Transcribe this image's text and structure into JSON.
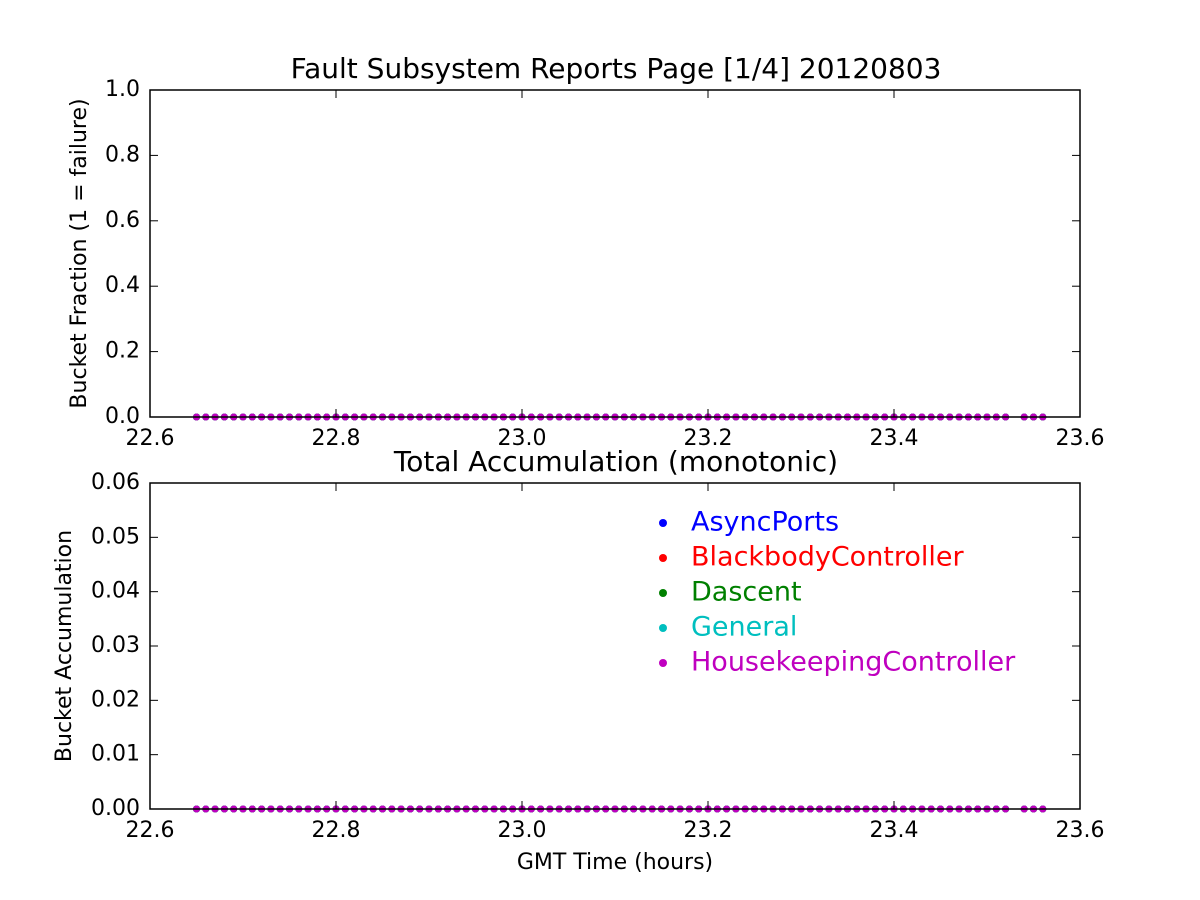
{
  "chart_data": [
    {
      "type": "scatter",
      "title": "Fault Subsystem Reports Page [1/4] 20120803",
      "y_label": "Bucket Fraction (1 = failure)",
      "x": [
        22.65,
        22.66,
        22.67,
        22.68,
        22.69,
        22.7,
        22.71,
        22.72,
        22.73,
        22.74,
        22.75,
        22.76,
        22.77,
        22.78,
        22.79,
        22.8,
        22.81,
        22.82,
        22.83,
        22.84,
        22.85,
        22.86,
        22.87,
        22.88,
        22.89,
        22.9,
        22.91,
        22.92,
        22.93,
        22.94,
        22.95,
        22.96,
        22.97,
        22.98,
        22.99,
        23.0,
        23.01,
        23.02,
        23.03,
        23.04,
        23.05,
        23.06,
        23.07,
        23.08,
        23.09,
        23.1,
        23.11,
        23.12,
        23.13,
        23.14,
        23.15,
        23.16,
        23.17,
        23.18,
        23.19,
        23.2,
        23.21,
        23.22,
        23.23,
        23.24,
        23.25,
        23.26,
        23.27,
        23.28,
        23.29,
        23.3,
        23.31,
        23.32,
        23.33,
        23.34,
        23.35,
        23.36,
        23.37,
        23.38,
        23.39,
        23.4,
        23.41,
        23.42,
        23.43,
        23.44,
        23.45,
        23.46,
        23.47,
        23.48,
        23.49,
        23.5,
        23.51,
        23.52,
        23.54,
        23.55,
        23.56
      ],
      "series": [
        {
          "color": "#0000ff",
          "values": [
            0,
            0,
            0,
            0,
            0,
            0,
            0,
            0,
            0,
            0,
            0,
            0,
            0,
            0,
            0,
            0,
            0,
            0,
            0,
            0,
            0,
            0,
            0,
            0,
            0,
            0,
            0,
            0,
            0,
            0,
            0,
            0,
            0,
            0,
            0,
            0,
            0,
            0,
            0,
            0,
            0,
            0,
            0,
            0,
            0,
            0,
            0,
            0,
            0,
            0,
            0,
            0,
            0,
            0,
            0,
            0,
            0,
            0,
            0,
            0,
            0,
            0,
            0,
            0,
            0,
            0,
            0,
            0,
            0,
            0,
            0,
            0,
            0,
            0,
            0,
            0,
            0,
            0,
            0,
            0,
            0,
            0,
            0,
            0,
            0,
            0,
            0,
            0,
            0,
            0,
            0
          ]
        },
        {
          "color": "#ff0000",
          "values": [
            0,
            0,
            0,
            0,
            0,
            0,
            0,
            0,
            0,
            0,
            0,
            0,
            0,
            0,
            0,
            0,
            0,
            0,
            0,
            0,
            0,
            0,
            0,
            0,
            0,
            0,
            0,
            0,
            0,
            0,
            0,
            0,
            0,
            0,
            0,
            0,
            0,
            0,
            0,
            0,
            0,
            0,
            0,
            0,
            0,
            0,
            0,
            0,
            0,
            0,
            0,
            0,
            0,
            0,
            0,
            0,
            0,
            0,
            0,
            0,
            0,
            0,
            0,
            0,
            0,
            0,
            0,
            0,
            0,
            0,
            0,
            0,
            0,
            0,
            0,
            0,
            0,
            0,
            0,
            0,
            0,
            0,
            0,
            0,
            0,
            0,
            0,
            0,
            0,
            0,
            0
          ]
        },
        {
          "color": "#008000",
          "values": [
            0,
            0,
            0,
            0,
            0,
            0,
            0,
            0,
            0,
            0,
            0,
            0,
            0,
            0,
            0,
            0,
            0,
            0,
            0,
            0,
            0,
            0,
            0,
            0,
            0,
            0,
            0,
            0,
            0,
            0,
            0,
            0,
            0,
            0,
            0,
            0,
            0,
            0,
            0,
            0,
            0,
            0,
            0,
            0,
            0,
            0,
            0,
            0,
            0,
            0,
            0,
            0,
            0,
            0,
            0,
            0,
            0,
            0,
            0,
            0,
            0,
            0,
            0,
            0,
            0,
            0,
            0,
            0,
            0,
            0,
            0,
            0,
            0,
            0,
            0,
            0,
            0,
            0,
            0,
            0,
            0,
            0,
            0,
            0,
            0,
            0,
            0,
            0,
            0,
            0,
            0
          ]
        },
        {
          "color": "#00bfbf",
          "values": [
            0,
            0,
            0,
            0,
            0,
            0,
            0,
            0,
            0,
            0,
            0,
            0,
            0,
            0,
            0,
            0,
            0,
            0,
            0,
            0,
            0,
            0,
            0,
            0,
            0,
            0,
            0,
            0,
            0,
            0,
            0,
            0,
            0,
            0,
            0,
            0,
            0,
            0,
            0,
            0,
            0,
            0,
            0,
            0,
            0,
            0,
            0,
            0,
            0,
            0,
            0,
            0,
            0,
            0,
            0,
            0,
            0,
            0,
            0,
            0,
            0,
            0,
            0,
            0,
            0,
            0,
            0,
            0,
            0,
            0,
            0,
            0,
            0,
            0,
            0,
            0,
            0,
            0,
            0,
            0,
            0,
            0,
            0,
            0,
            0,
            0,
            0,
            0,
            0,
            0,
            0
          ]
        },
        {
          "color": "#bf00bf",
          "values": [
            0,
            0,
            0,
            0,
            0,
            0,
            0,
            0,
            0,
            0,
            0,
            0,
            0,
            0,
            0,
            0,
            0,
            0,
            0,
            0,
            0,
            0,
            0,
            0,
            0,
            0,
            0,
            0,
            0,
            0,
            0,
            0,
            0,
            0,
            0,
            0,
            0,
            0,
            0,
            0,
            0,
            0,
            0,
            0,
            0,
            0,
            0,
            0,
            0,
            0,
            0,
            0,
            0,
            0,
            0,
            0,
            0,
            0,
            0,
            0,
            0,
            0,
            0,
            0,
            0,
            0,
            0,
            0,
            0,
            0,
            0,
            0,
            0,
            0,
            0,
            0,
            0,
            0,
            0,
            0,
            0,
            0,
            0,
            0,
            0,
            0,
            0,
            0,
            0,
            0,
            0
          ]
        }
      ],
      "xlim": [
        22.6,
        23.6
      ],
      "xticks": [
        22.6,
        22.8,
        {
          "value": 23,
          "label": "23.0"
        },
        23.2,
        23.4,
        23.6
      ],
      "ylim": [
        0,
        1
      ],
      "yticks": [
        {
          "value": 0,
          "label": "0.0"
        },
        0.2,
        0.4,
        0.6,
        0.8,
        {
          "value": 1,
          "label": "1.0"
        }
      ]
    },
    {
      "type": "scatter",
      "title": "Total Accumulation (monotonic)",
      "y_label": "Bucket Accumulation",
      "x_label": "GMT Time (hours)",
      "x": [
        22.65,
        22.66,
        22.67,
        22.68,
        22.69,
        22.7,
        22.71,
        22.72,
        22.73,
        22.74,
        22.75,
        22.76,
        22.77,
        22.78,
        22.79,
        22.8,
        22.81,
        22.82,
        22.83,
        22.84,
        22.85,
        22.86,
        22.87,
        22.88,
        22.89,
        22.9,
        22.91,
        22.92,
        22.93,
        22.94,
        22.95,
        22.96,
        22.97,
        22.98,
        22.99,
        23.0,
        23.01,
        23.02,
        23.03,
        23.04,
        23.05,
        23.06,
        23.07,
        23.08,
        23.09,
        23.1,
        23.11,
        23.12,
        23.13,
        23.14,
        23.15,
        23.16,
        23.17,
        23.18,
        23.19,
        23.2,
        23.21,
        23.22,
        23.23,
        23.24,
        23.25,
        23.26,
        23.27,
        23.28,
        23.29,
        23.3,
        23.31,
        23.32,
        23.33,
        23.34,
        23.35,
        23.36,
        23.37,
        23.38,
        23.39,
        23.4,
        23.41,
        23.42,
        23.43,
        23.44,
        23.45,
        23.46,
        23.47,
        23.48,
        23.49,
        23.5,
        23.51,
        23.52,
        23.54,
        23.55,
        23.56
      ],
      "series": [
        {
          "name": "AsyncPorts",
          "color": "#0000ff",
          "values": [
            0,
            0,
            0,
            0,
            0,
            0,
            0,
            0,
            0,
            0,
            0,
            0,
            0,
            0,
            0,
            0,
            0,
            0,
            0,
            0,
            0,
            0,
            0,
            0,
            0,
            0,
            0,
            0,
            0,
            0,
            0,
            0,
            0,
            0,
            0,
            0,
            0,
            0,
            0,
            0,
            0,
            0,
            0,
            0,
            0,
            0,
            0,
            0,
            0,
            0,
            0,
            0,
            0,
            0,
            0,
            0,
            0,
            0,
            0,
            0,
            0,
            0,
            0,
            0,
            0,
            0,
            0,
            0,
            0,
            0,
            0,
            0,
            0,
            0,
            0,
            0,
            0,
            0,
            0,
            0,
            0,
            0,
            0,
            0,
            0,
            0,
            0,
            0,
            0,
            0,
            0
          ]
        },
        {
          "name": "BlackbodyController",
          "color": "#ff0000",
          "values": [
            0,
            0,
            0,
            0,
            0,
            0,
            0,
            0,
            0,
            0,
            0,
            0,
            0,
            0,
            0,
            0,
            0,
            0,
            0,
            0,
            0,
            0,
            0,
            0,
            0,
            0,
            0,
            0,
            0,
            0,
            0,
            0,
            0,
            0,
            0,
            0,
            0,
            0,
            0,
            0,
            0,
            0,
            0,
            0,
            0,
            0,
            0,
            0,
            0,
            0,
            0,
            0,
            0,
            0,
            0,
            0,
            0,
            0,
            0,
            0,
            0,
            0,
            0,
            0,
            0,
            0,
            0,
            0,
            0,
            0,
            0,
            0,
            0,
            0,
            0,
            0,
            0,
            0,
            0,
            0,
            0,
            0,
            0,
            0,
            0,
            0,
            0,
            0,
            0,
            0,
            0
          ]
        },
        {
          "name": "Dascent",
          "color": "#008000",
          "values": [
            0,
            0,
            0,
            0,
            0,
            0,
            0,
            0,
            0,
            0,
            0,
            0,
            0,
            0,
            0,
            0,
            0,
            0,
            0,
            0,
            0,
            0,
            0,
            0,
            0,
            0,
            0,
            0,
            0,
            0,
            0,
            0,
            0,
            0,
            0,
            0,
            0,
            0,
            0,
            0,
            0,
            0,
            0,
            0,
            0,
            0,
            0,
            0,
            0,
            0,
            0,
            0,
            0,
            0,
            0,
            0,
            0,
            0,
            0,
            0,
            0,
            0,
            0,
            0,
            0,
            0,
            0,
            0,
            0,
            0,
            0,
            0,
            0,
            0,
            0,
            0,
            0,
            0,
            0,
            0,
            0,
            0,
            0,
            0,
            0,
            0,
            0,
            0,
            0,
            0,
            0
          ]
        },
        {
          "name": "General",
          "color": "#00bfbf",
          "values": [
            0,
            0,
            0,
            0,
            0,
            0,
            0,
            0,
            0,
            0,
            0,
            0,
            0,
            0,
            0,
            0,
            0,
            0,
            0,
            0,
            0,
            0,
            0,
            0,
            0,
            0,
            0,
            0,
            0,
            0,
            0,
            0,
            0,
            0,
            0,
            0,
            0,
            0,
            0,
            0,
            0,
            0,
            0,
            0,
            0,
            0,
            0,
            0,
            0,
            0,
            0,
            0,
            0,
            0,
            0,
            0,
            0,
            0,
            0,
            0,
            0,
            0,
            0,
            0,
            0,
            0,
            0,
            0,
            0,
            0,
            0,
            0,
            0,
            0,
            0,
            0,
            0,
            0,
            0,
            0,
            0,
            0,
            0,
            0,
            0,
            0,
            0,
            0,
            0,
            0,
            0
          ]
        },
        {
          "name": "HousekeepingController",
          "color": "#bf00bf",
          "values": [
            0,
            0,
            0,
            0,
            0,
            0,
            0,
            0,
            0,
            0,
            0,
            0,
            0,
            0,
            0,
            0,
            0,
            0,
            0,
            0,
            0,
            0,
            0,
            0,
            0,
            0,
            0,
            0,
            0,
            0,
            0,
            0,
            0,
            0,
            0,
            0,
            0,
            0,
            0,
            0,
            0,
            0,
            0,
            0,
            0,
            0,
            0,
            0,
            0,
            0,
            0,
            0,
            0,
            0,
            0,
            0,
            0,
            0,
            0,
            0,
            0,
            0,
            0,
            0,
            0,
            0,
            0,
            0,
            0,
            0,
            0,
            0,
            0,
            0,
            0,
            0,
            0,
            0,
            0,
            0,
            0,
            0,
            0,
            0,
            0,
            0,
            0,
            0,
            0,
            0,
            0
          ]
        }
      ],
      "xlim": [
        22.6,
        23.6
      ],
      "xticks": [
        22.6,
        22.8,
        {
          "value": 23,
          "label": "23.0"
        },
        23.2,
        23.4,
        23.6
      ],
      "ylim": [
        0,
        0.06
      ],
      "yticks": [
        {
          "value": 0,
          "label": "0.00"
        },
        0.01,
        0.02,
        0.03,
        0.04,
        0.05,
        0.06
      ],
      "legend": "upper right"
    }
  ]
}
